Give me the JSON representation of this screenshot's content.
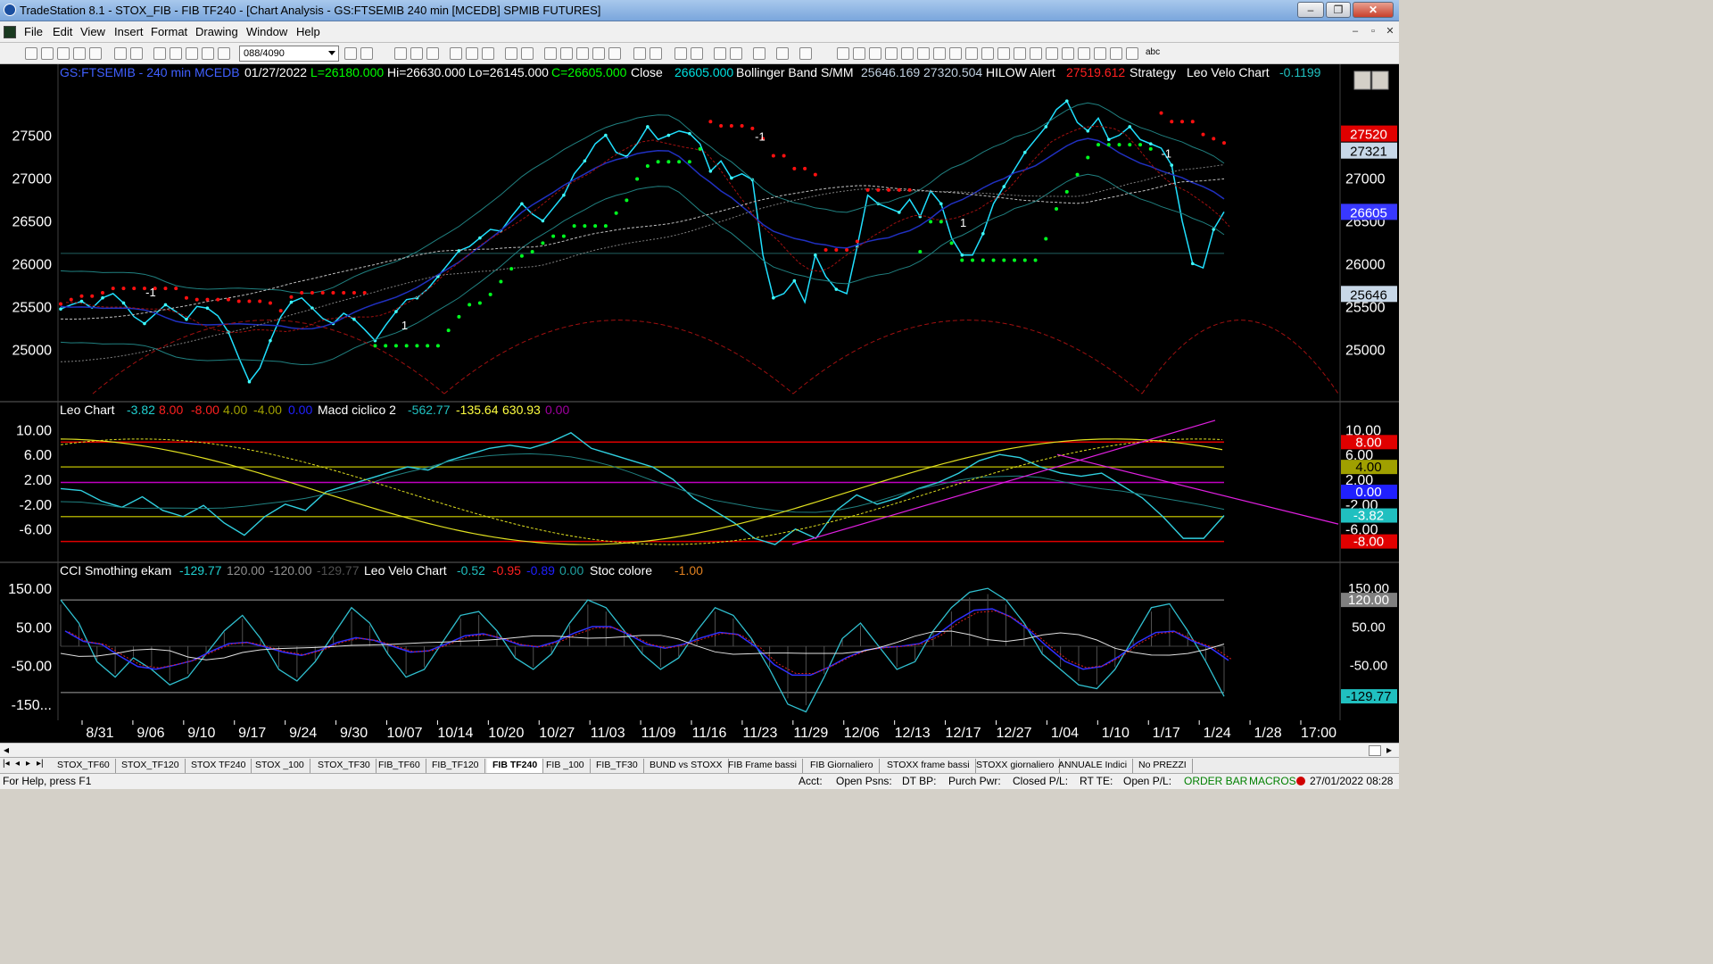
{
  "window": {
    "title": "TradeStation 8.1 - STOX_FIB - FIB TF240 - [Chart Analysis - GS:FTSEMIB  240 min  [MCEDB] SPMIB FUTURES]",
    "minimize": "‒",
    "restore": "❐",
    "close": "✕"
  },
  "menu": {
    "items": [
      "File",
      "Edit",
      "View",
      "Insert",
      "Format",
      "Drawing",
      "Window",
      "Help"
    ],
    "mdi_minimize": "–",
    "mdi_restore": "▫",
    "mdi_close": "✕"
  },
  "toolbar": {
    "bar_count": "088/4090",
    "text_tool": "abc"
  },
  "chart_data": [
    {
      "type": "line",
      "title": "GS:FTSEMIB - 240 min",
      "header": {
        "symbol": "GS:FTSEMIB - 240 min",
        "datafeed": "MCEDB",
        "date": "01/27/2022",
        "low_open": "L=26180.000",
        "high": "Hi=26630.000",
        "low": "Lo=26145.000",
        "close_label": "C=26605.000",
        "close_word": "Close",
        "close_value": "26605.000",
        "bb_name": "Bollinger Band S/MM",
        "bb_value1": "25646.169",
        "bb_value2": "27320.504",
        "hilow_name": "HILOW Alert",
        "hilow_value": "27519.612",
        "strategy": "Strategy",
        "leo_velo_name": "Leo Velo Chart",
        "leo_velo_value": "-0.1199"
      },
      "x_labels": [
        "8/31",
        "9/06",
        "9/10",
        "9/17",
        "9/24",
        "9/30",
        "10/07",
        "10/14",
        "10/20",
        "10/27",
        "11/03",
        "11/09",
        "11/16",
        "11/23",
        "11/29",
        "12/06",
        "12/13",
        "12/17",
        "12/27",
        "1/04",
        "1/10",
        "1/17",
        "1/24",
        "1/28",
        "17:00"
      ],
      "y_ticks": [
        "27500",
        "27000",
        "26500",
        "26000",
        "25500",
        "25000"
      ],
      "ylim": [
        24450,
        28100
      ],
      "price_badges": [
        {
          "text": "27520",
          "value": 27520,
          "color": "#e00000"
        },
        {
          "text": "27321",
          "value": 27321,
          "color": "#c8d8e8"
        },
        {
          "text": "26605",
          "value": 26605,
          "color": "#3838ff"
        },
        {
          "text": "25646",
          "value": 25646,
          "color": "#c8d8e8"
        }
      ],
      "signals": [
        {
          "text": "-1",
          "x_date": "9/06",
          "y": 25620
        },
        {
          "text": "1",
          "x_date": "10/07",
          "y": 25230
        },
        {
          "text": "-1",
          "x_date": "11/23",
          "y": 27440
        },
        {
          "text": "1",
          "x_date": "12/17",
          "y": 26430
        },
        {
          "text": "-1",
          "x_date": "1/17",
          "y": 27240
        }
      ],
      "price_series": [
        25470,
        25520,
        25560,
        25480,
        25600,
        25650,
        25540,
        25380,
        25300,
        25410,
        25520,
        25440,
        25350,
        25500,
        25480,
        25390,
        25200,
        24900,
        24620,
        24780,
        25100,
        25380,
        25550,
        25600,
        25480,
        25360,
        25300,
        25420,
        25350,
        25230,
        25100,
        25280,
        25440,
        25580,
        25600,
        25700,
        25850,
        26000,
        26150,
        26200,
        26300,
        26400,
        26380,
        26550,
        26700,
        26580,
        26500,
        26650,
        26800,
        27050,
        27200,
        27400,
        27500,
        27300,
        27250,
        27400,
        27600,
        27450,
        27500,
        27550,
        27520,
        27400,
        27080,
        27200,
        27000,
        27050,
        26980,
        26100,
        25600,
        25650,
        25800,
        25550,
        26100,
        25850,
        25700,
        25650,
        26200,
        26800,
        26700,
        26650,
        26600,
        26750,
        26550,
        26850,
        26700,
        26300,
        26100,
        26100,
        26350,
        26700,
        26900,
        27100,
        27300,
        27450,
        27600,
        27800,
        27900,
        27650,
        27550,
        27700,
        27450,
        27500,
        27600,
        27450,
        27400,
        27350,
        27150,
        26500,
        26000,
        25950,
        26400,
        26605
      ],
      "series": [
        {
          "name": "HILOW Alert",
          "color": "#00ff00"
        },
        {
          "name": "Bollinger Band S/MM",
          "color": "#40c0c0"
        }
      ]
    },
    {
      "type": "line",
      "title": "Leo Chart",
      "header": {
        "name": "Leo Chart",
        "v1": "-3.82",
        "v2": "8.00",
        "v3": "-8.00",
        "v4": "4.00",
        "v5": "-4.00",
        "v6": "0.00",
        "macd_name": "Macd ciclico 2",
        "m1": "-562.77",
        "m2": "-135.64",
        "m3": "630.93",
        "m4": "0.00"
      },
      "y_ticks": [
        "10.00",
        "6.00",
        "2.00",
        "-2.00",
        "-6.00"
      ],
      "ylim": [
        -10.5,
        12.5
      ],
      "levels": [
        {
          "value": 8,
          "color": "#e00000"
        },
        {
          "value": 4,
          "color": "#a0a000"
        },
        {
          "value": 1.5,
          "color": "#c000c0"
        },
        {
          "value": -4,
          "color": "#a0a000"
        },
        {
          "value": -8,
          "color": "#e00000"
        }
      ],
      "badges": [
        {
          "text": "8.00",
          "value": 8,
          "color": "#e00000"
        },
        {
          "text": "4.00",
          "value": 4,
          "color": "#a0a000"
        },
        {
          "text": "0.00",
          "value": 0,
          "color": "#2020ff"
        },
        {
          "text": "-3.82",
          "value": -3.82,
          "color": "#20c0c0"
        },
        {
          "text": "-8.00",
          "value": -8,
          "color": "#e00000"
        }
      ],
      "leo_series": [
        0.5,
        0.2,
        -1.5,
        -2.5,
        -0.8,
        -3,
        -4,
        -2.2,
        -5,
        -7,
        -4,
        -2,
        -3,
        0,
        1,
        2,
        3,
        4,
        3.5,
        5,
        6,
        7,
        7.5,
        7,
        8,
        9.5,
        7,
        6,
        5,
        4,
        2,
        -1,
        -3,
        -5,
        -7.5,
        -8.5,
        -6,
        -7.5,
        -3,
        -0.5,
        -2,
        -1,
        0.5,
        1.5,
        3,
        5,
        6,
        5.5,
        4,
        3,
        2.5,
        3,
        1,
        -1,
        -4,
        -7.5,
        -7.5,
        -3.82
      ]
    },
    {
      "type": "line",
      "title": "CCI Smothing ekam",
      "header": {
        "name": "CCI Smothing ekam",
        "v1": "-129.77",
        "v2": "120.00",
        "v3": "-120.00",
        "v4": "-129.77",
        "leo_velo": "Leo Velo Chart",
        "lv1": "-0.52",
        "lv2": "-0.95",
        "lv3": "-0.89",
        "lv4": "0.00",
        "stoc": "Stoc colore",
        "stoc_v": "-1.00"
      },
      "y_ticks": [
        "150.00",
        "50.00",
        "-50.00",
        "-150..."
      ],
      "ylim": [
        -185,
        185
      ],
      "badges": [
        {
          "text": "150.00",
          "value": 150,
          "color": "#000000",
          "fg": "#ffffff"
        },
        {
          "text": "120.00",
          "value": 120,
          "color": "#808080"
        },
        {
          "text": "50.00",
          "value": 50,
          "color": "#000000",
          "fg": "#ffffff"
        },
        {
          "text": "-50.00",
          "value": -50,
          "color": "#000000",
          "fg": "#ffffff"
        },
        {
          "text": "-129.77",
          "value": -129.77,
          "color": "#20c0c0"
        }
      ],
      "cci_series": [
        120,
        60,
        -40,
        -80,
        -30,
        -60,
        -100,
        -80,
        -20,
        40,
        80,
        20,
        -60,
        -90,
        -40,
        30,
        100,
        60,
        -20,
        -80,
        -60,
        10,
        80,
        90,
        40,
        -30,
        -60,
        -20,
        60,
        120,
        100,
        40,
        -20,
        -60,
        -30,
        40,
        100,
        80,
        20,
        -60,
        -150,
        -170,
        -80,
        20,
        60,
        0,
        -60,
        -40,
        40,
        100,
        140,
        150,
        120,
        60,
        -20,
        -60,
        -100,
        -110,
        -60,
        20,
        100,
        110,
        40,
        -40,
        -130
      ]
    }
  ],
  "scroll": {
    "left_arrow": "◂",
    "right_arrow": "▸"
  },
  "tabs": [
    "STOX_TF60",
    "STOX_TF120",
    "STOX TF240",
    "STOX _100",
    "STOX_TF30",
    "FIB_TF60",
    "FIB_TF120",
    "FIB TF240",
    "FIB _100",
    "FIB_TF30",
    "BUND vs STOXX",
    "FIB Frame bassi",
    "FIB Giornaliero",
    "STOXX frame bassi",
    "STOXX giornaliero",
    "ANNUALE Indici",
    "No PREZZI"
  ],
  "active_tab": "FIB TF240",
  "status": {
    "help": "For Help, press F1",
    "acct": "Acct:",
    "open_psns": "Open Psns:",
    "dt_bp": "DT BP:",
    "purch_pwr": "Purch Pwr:",
    "closed_pl": "Closed P/L:",
    "rt_te": "RT TE:",
    "open_pl": "Open P/L:",
    "order_bar": "ORDER BAR",
    "macros": "MACROS",
    "datetime": "27/01/2022 08:28"
  },
  "colors": {
    "chart_bg": "#000000",
    "price_line": "#20e0ff",
    "hilow_green": "#00ff20",
    "hilow_red": "#ff1010",
    "axis_text": "#ffffff"
  }
}
